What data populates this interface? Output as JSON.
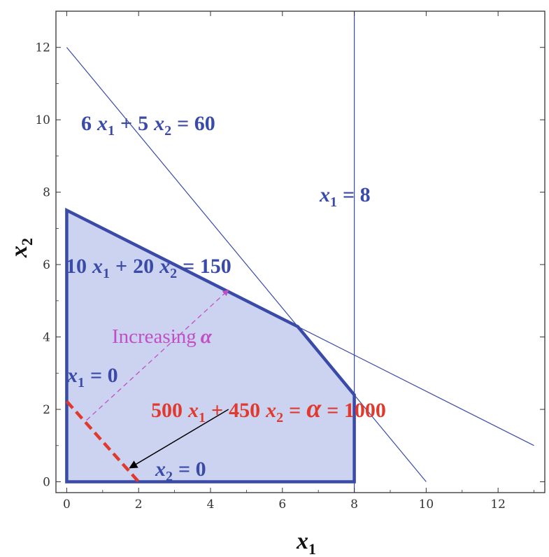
{
  "chart_data": {
    "type": "line",
    "title": "",
    "xlabel": {
      "base": "x",
      "sub": "1"
    },
    "ylabel": {
      "base": "x",
      "sub": "2"
    },
    "xlim": [
      -0.3,
      13.3
    ],
    "ylim": [
      -0.3,
      13.0
    ],
    "xticks": [
      "0",
      "2",
      "4",
      "6",
      "8",
      "10",
      "12"
    ],
    "yticks": [
      "0",
      "2",
      "4",
      "6",
      "8",
      "10",
      "12"
    ],
    "colors": {
      "constraint": "#3a4aa8",
      "region_fill": "#cbd3f0",
      "region_edge": "#3a4aa8",
      "objective": "#e03a2e",
      "direction": "#c24fc6",
      "pointer": "#000000"
    },
    "series": [
      {
        "points": [
          [
            0,
            12
          ],
          [
            10,
            0
          ]
        ]
      },
      {
        "points": [
          [
            8,
            -0.3
          ],
          [
            8,
            13.0
          ]
        ]
      },
      {
        "points": [
          [
            0,
            7.5
          ],
          [
            13,
            1.0
          ]
        ]
      }
    ],
    "feasible_region": [
      [
        0,
        0
      ],
      [
        0,
        7.5
      ],
      [
        6.4286,
        4.2857
      ],
      [
        8,
        2.4
      ],
      [
        8,
        0
      ]
    ],
    "objective_line": [
      [
        0,
        2.2222
      ],
      [
        2,
        0
      ]
    ],
    "direction_arrow": {
      "from": [
        0.55,
        1.7
      ],
      "to": [
        4.5,
        5.3
      ]
    },
    "pointer_arrow": {
      "from": [
        4.5,
        2.0
      ],
      "to": [
        1.75,
        0.38
      ]
    },
    "annotations": {
      "c1": {
        "a": "6",
        "v1": "x",
        "s1": "1",
        "op": "+",
        "b": "5",
        "v2": "x",
        "s2": "2",
        "eq": "= 60"
      },
      "c2": {
        "v": "x",
        "s": "1",
        "eq": "= 8"
      },
      "c3": {
        "a": "10",
        "v1": "x",
        "s1": "1",
        "op": "+",
        "b": "20",
        "v2": "x",
        "s2": "2",
        "eq": "= 150"
      },
      "c4": {
        "v": "x",
        "s": "1",
        "eq": "= 0"
      },
      "c5": {
        "v": "x",
        "s": "2",
        "eq": "= 0"
      },
      "obj": {
        "a": "500",
        "v1": "x",
        "s1": "1",
        "op": "+",
        "b": "450",
        "v2": "x",
        "s2": "2",
        "eq1": "=",
        "alpha": "α",
        "eq2": "= 1000"
      },
      "dir": {
        "text": "Increasing",
        "alpha": "α"
      }
    }
  }
}
